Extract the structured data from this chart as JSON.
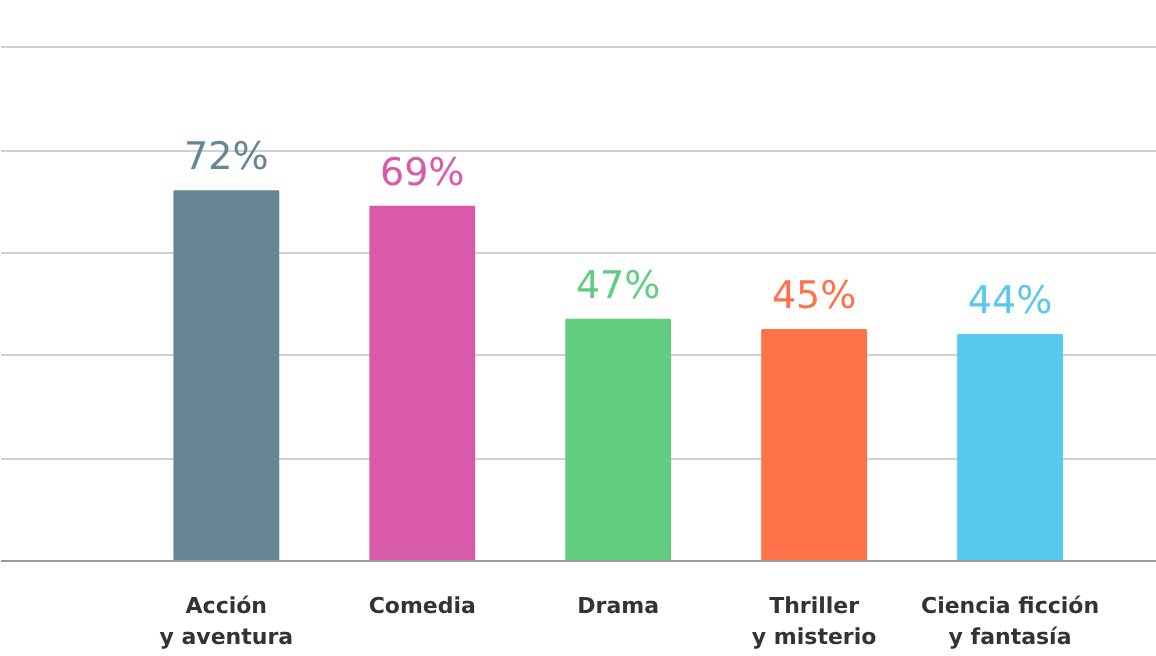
{
  "chart_data": {
    "type": "bar",
    "categories": [
      "Acción\ny aventura",
      "Comedia",
      "Drama",
      "Thriller\ny misterio",
      "Ciencia ficción\ny fantasía"
    ],
    "values": [
      72,
      69,
      47,
      45,
      44
    ],
    "colors": [
      "#668693",
      "#d95aa8",
      "#62cd80",
      "#ff7249",
      "#57c8ee"
    ],
    "value_labels": [
      "72%",
      "69%",
      "47%",
      "45%",
      "44%"
    ],
    "yticks": [
      {
        "value": 0,
        "label": null
      },
      {
        "value": 20,
        "label": null
      },
      {
        "value": 40,
        "label": null
      },
      {
        "value": 60,
        "label": null
      },
      {
        "value": 80,
        "label": null
      },
      {
        "value": 100,
        "label": null
      }
    ],
    "grid": "y"
  }
}
